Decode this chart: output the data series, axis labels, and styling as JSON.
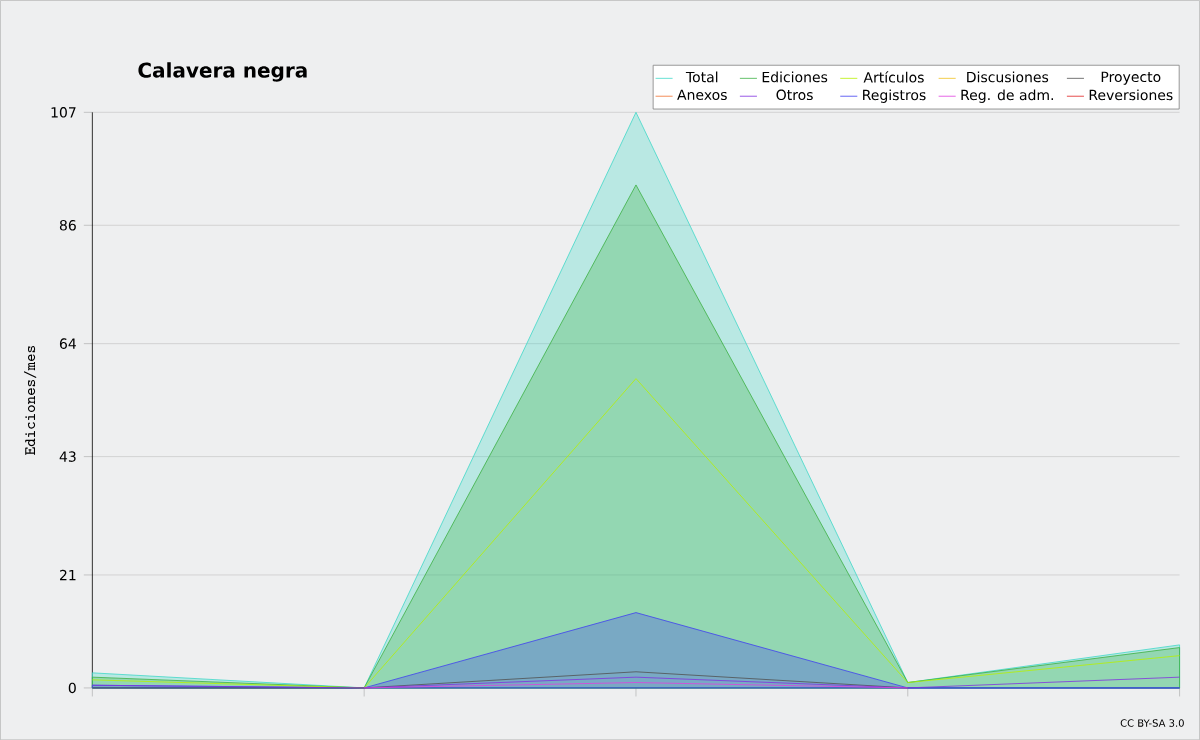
{
  "chart_data": {
    "type": "line",
    "title": "Calavera negra",
    "ylabel": "Ediciones/mes",
    "categories": [
      null,
      null,
      null,
      null,
      null
    ],
    "series": [
      {
        "name": "Total",
        "type": "area",
        "color": "#40d8c8",
        "values": [
          2.8,
          0,
          107,
          1,
          8
        ]
      },
      {
        "name": "Ediciones",
        "type": "area",
        "color": "#3cb043",
        "values": [
          2,
          0,
          93.5,
          1,
          7.5
        ]
      },
      {
        "name": "Artículos",
        "color": "#b8f000",
        "values": [
          1.5,
          0,
          57.5,
          1,
          6
        ]
      },
      {
        "name": "Discusiones",
        "color": "#f0c020",
        "values": [
          null,
          null,
          null,
          null,
          null
        ]
      },
      {
        "name": "Proyecto",
        "color": "#505050",
        "values": [
          0,
          0,
          3,
          0,
          null
        ]
      },
      {
        "name": "Anexos",
        "color": "#f07030",
        "values": [
          null,
          null,
          null,
          null,
          null
        ]
      },
      {
        "name": "Otros",
        "color": "#8030e0",
        "values": [
          0.5,
          0,
          2,
          0,
          2
        ]
      },
      {
        "name": "Registros",
        "type": "area",
        "color": "#4040f0",
        "values": [
          0.5,
          0,
          14,
          0,
          0
        ]
      },
      {
        "name": "Reg. de adm.",
        "color": "#e040e0",
        "values": [
          null,
          0,
          1,
          0,
          null
        ]
      },
      {
        "name": "Reversiones",
        "color": "#e02020",
        "values": [
          null,
          null,
          null,
          null,
          null
        ]
      }
    ],
    "ylim": [
      0,
      107
    ],
    "yticks": [
      0,
      21,
      43,
      64,
      86,
      107
    ],
    "grid": "y",
    "legend": "top right",
    "annotations": [
      "CC BY-SA 3.0"
    ]
  }
}
